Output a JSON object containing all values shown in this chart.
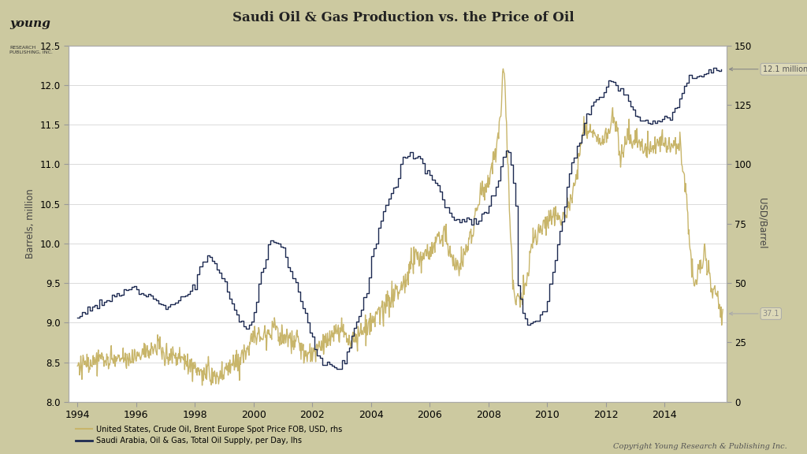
{
  "title": "Saudi Oil & Gas Production vs. the Price of Oil",
  "bg_outer": "#ccc9a0",
  "bg_plot": "#ffffff",
  "ylabel_left": "Barrels, million",
  "ylabel_right": "USD/Barrel",
  "ylim_left": [
    8.0,
    12.5
  ],
  "ylim_right": [
    0,
    150
  ],
  "xlim": [
    1993.7,
    2016.1
  ],
  "yticks_left": [
    8.0,
    8.5,
    9.0,
    9.5,
    10.0,
    10.5,
    11.0,
    11.5,
    12.0,
    12.5
  ],
  "yticks_right": [
    0,
    25,
    50,
    75,
    100,
    125,
    150
  ],
  "xtick_positions": [
    1994,
    1996,
    1998,
    2000,
    2002,
    2004,
    2006,
    2008,
    2010,
    2012,
    2014
  ],
  "xtick_labels": [
    "1994",
    "1996",
    "1998",
    "2000",
    "2002",
    "2004",
    "2006",
    "2008",
    "2010",
    "2012",
    "2014"
  ],
  "legend_gold": "United States, Crude Oil, Brent Europe Spot Price FOB, USD, rhs",
  "legend_navy": "Saudi Arabia, Oil & Gas, Total Oil Supply, per Day, lhs",
  "color_gold": "#c8b56a",
  "color_navy": "#1c2951",
  "label_121": "12.1 million",
  "label_371": "37.1",
  "copyright": "Copyright Young Research & Publishing Inc.",
  "saudi_key_points": [
    [
      1994.0,
      9.05
    ],
    [
      1994.083,
      9.1
    ],
    [
      1994.25,
      9.15
    ],
    [
      1994.333,
      9.18
    ],
    [
      1994.5,
      9.2
    ],
    [
      1994.583,
      9.22
    ],
    [
      1994.667,
      9.2
    ],
    [
      1994.75,
      9.22
    ],
    [
      1994.917,
      9.25
    ],
    [
      1995.0,
      9.25
    ],
    [
      1995.083,
      9.3
    ],
    [
      1995.25,
      9.33
    ],
    [
      1995.333,
      9.35
    ],
    [
      1995.5,
      9.38
    ],
    [
      1995.667,
      9.4
    ],
    [
      1995.75,
      9.42
    ],
    [
      1995.917,
      9.45
    ],
    [
      1996.0,
      9.45
    ],
    [
      1996.083,
      9.42
    ],
    [
      1996.25,
      9.4
    ],
    [
      1996.417,
      9.38
    ],
    [
      1996.5,
      9.35
    ],
    [
      1996.583,
      9.3
    ],
    [
      1996.667,
      9.28
    ],
    [
      1996.75,
      9.25
    ],
    [
      1996.917,
      9.22
    ],
    [
      1997.0,
      9.2
    ],
    [
      1997.083,
      9.22
    ],
    [
      1997.25,
      9.25
    ],
    [
      1997.5,
      9.3
    ],
    [
      1997.667,
      9.35
    ],
    [
      1997.75,
      9.38
    ],
    [
      1997.917,
      9.42
    ],
    [
      1998.0,
      9.5
    ],
    [
      1998.083,
      9.6
    ],
    [
      1998.167,
      9.7
    ],
    [
      1998.25,
      9.75
    ],
    [
      1998.333,
      9.8
    ],
    [
      1998.5,
      9.8
    ],
    [
      1998.583,
      9.78
    ],
    [
      1998.667,
      9.75
    ],
    [
      1999.0,
      9.5
    ],
    [
      1999.083,
      9.38
    ],
    [
      1999.167,
      9.3
    ],
    [
      1999.25,
      9.22
    ],
    [
      1999.333,
      9.15
    ],
    [
      1999.417,
      9.1
    ],
    [
      1999.5,
      9.05
    ],
    [
      1999.583,
      9.0
    ],
    [
      1999.667,
      8.98
    ],
    [
      1999.75,
      8.95
    ],
    [
      1999.917,
      9.0
    ],
    [
      2000.0,
      9.1
    ],
    [
      2000.083,
      9.3
    ],
    [
      2000.25,
      9.6
    ],
    [
      2000.417,
      9.8
    ],
    [
      2000.5,
      10.0
    ],
    [
      2000.583,
      10.05
    ],
    [
      2000.667,
      10.05
    ],
    [
      2000.75,
      10.05
    ],
    [
      2000.833,
      10.0
    ],
    [
      2000.917,
      9.95
    ],
    [
      2001.0,
      9.9
    ],
    [
      2001.083,
      9.85
    ],
    [
      2001.167,
      9.75
    ],
    [
      2001.25,
      9.65
    ],
    [
      2001.417,
      9.5
    ],
    [
      2001.5,
      9.4
    ],
    [
      2001.583,
      9.3
    ],
    [
      2001.667,
      9.2
    ],
    [
      2001.75,
      9.1
    ],
    [
      2001.833,
      9.0
    ],
    [
      2001.917,
      8.9
    ],
    [
      2002.0,
      8.8
    ],
    [
      2002.083,
      8.7
    ],
    [
      2002.167,
      8.6
    ],
    [
      2002.25,
      8.55
    ],
    [
      2002.333,
      8.5
    ],
    [
      2002.5,
      8.5
    ],
    [
      2002.583,
      8.48
    ],
    [
      2002.667,
      8.46
    ],
    [
      2002.75,
      8.45
    ],
    [
      2002.833,
      8.44
    ],
    [
      2002.917,
      8.44
    ],
    [
      2003.0,
      8.45
    ],
    [
      2003.083,
      8.5
    ],
    [
      2003.167,
      8.6
    ],
    [
      2003.25,
      8.7
    ],
    [
      2003.333,
      8.8
    ],
    [
      2003.417,
      8.9
    ],
    [
      2003.5,
      9.0
    ],
    [
      2003.583,
      9.1
    ],
    [
      2003.667,
      9.2
    ],
    [
      2003.75,
      9.3
    ],
    [
      2003.833,
      9.4
    ],
    [
      2003.917,
      9.6
    ],
    [
      2004.0,
      9.8
    ],
    [
      2004.083,
      9.9
    ],
    [
      2004.167,
      10.0
    ],
    [
      2004.25,
      10.2
    ],
    [
      2004.333,
      10.3
    ],
    [
      2004.5,
      10.5
    ],
    [
      2004.583,
      10.6
    ],
    [
      2004.667,
      10.65
    ],
    [
      2004.75,
      10.7
    ],
    [
      2004.833,
      10.75
    ],
    [
      2004.917,
      10.85
    ],
    [
      2005.0,
      11.0
    ],
    [
      2005.083,
      11.05
    ],
    [
      2005.167,
      11.08
    ],
    [
      2005.25,
      11.1
    ],
    [
      2005.333,
      11.1
    ],
    [
      2005.5,
      11.1
    ],
    [
      2005.583,
      11.08
    ],
    [
      2005.667,
      11.05
    ],
    [
      2005.75,
      11.0
    ],
    [
      2005.833,
      10.95
    ],
    [
      2005.917,
      10.9
    ],
    [
      2006.0,
      10.85
    ],
    [
      2006.083,
      10.8
    ],
    [
      2006.167,
      10.75
    ],
    [
      2006.25,
      10.7
    ],
    [
      2006.333,
      10.65
    ],
    [
      2006.5,
      10.5
    ],
    [
      2006.583,
      10.45
    ],
    [
      2006.667,
      10.4
    ],
    [
      2006.75,
      10.35
    ],
    [
      2006.917,
      10.3
    ],
    [
      2007.0,
      10.25
    ],
    [
      2007.083,
      10.3
    ],
    [
      2007.25,
      10.3
    ],
    [
      2007.5,
      10.3
    ],
    [
      2007.583,
      10.3
    ],
    [
      2007.667,
      10.32
    ],
    [
      2007.75,
      10.35
    ],
    [
      2007.917,
      10.4
    ],
    [
      2008.0,
      10.5
    ],
    [
      2008.083,
      10.6
    ],
    [
      2008.25,
      10.7
    ],
    [
      2008.333,
      10.8
    ],
    [
      2008.5,
      11.1
    ],
    [
      2008.583,
      11.2
    ],
    [
      2008.667,
      11.15
    ],
    [
      2008.75,
      11.0
    ],
    [
      2008.833,
      10.8
    ],
    [
      2008.917,
      10.5
    ],
    [
      2009.0,
      9.5
    ],
    [
      2009.083,
      9.3
    ],
    [
      2009.167,
      9.1
    ],
    [
      2009.25,
      9.05
    ],
    [
      2009.333,
      9.0
    ],
    [
      2009.5,
      9.0
    ],
    [
      2009.583,
      9.0
    ],
    [
      2009.667,
      9.05
    ],
    [
      2009.75,
      9.1
    ],
    [
      2009.833,
      9.15
    ],
    [
      2009.917,
      9.2
    ],
    [
      2010.0,
      9.3
    ],
    [
      2010.083,
      9.5
    ],
    [
      2010.25,
      9.8
    ],
    [
      2010.333,
      10.0
    ],
    [
      2010.5,
      10.3
    ],
    [
      2010.583,
      10.5
    ],
    [
      2010.667,
      10.7
    ],
    [
      2010.75,
      10.9
    ],
    [
      2010.833,
      11.0
    ],
    [
      2010.917,
      11.1
    ],
    [
      2011.0,
      11.2
    ],
    [
      2011.083,
      11.3
    ],
    [
      2011.25,
      11.5
    ],
    [
      2011.333,
      11.6
    ],
    [
      2011.5,
      11.7
    ],
    [
      2011.583,
      11.75
    ],
    [
      2011.667,
      11.8
    ],
    [
      2011.75,
      11.85
    ],
    [
      2011.833,
      11.9
    ],
    [
      2011.917,
      11.95
    ],
    [
      2012.0,
      12.0
    ],
    [
      2012.083,
      12.05
    ],
    [
      2012.167,
      12.05
    ],
    [
      2012.25,
      12.05
    ],
    [
      2012.333,
      12.0
    ],
    [
      2012.5,
      11.95
    ],
    [
      2012.583,
      11.9
    ],
    [
      2012.667,
      11.85
    ],
    [
      2012.75,
      11.8
    ],
    [
      2012.833,
      11.75
    ],
    [
      2012.917,
      11.7
    ],
    [
      2013.0,
      11.65
    ],
    [
      2013.083,
      11.6
    ],
    [
      2013.25,
      11.55
    ],
    [
      2013.5,
      11.5
    ],
    [
      2013.583,
      11.48
    ],
    [
      2013.667,
      11.5
    ],
    [
      2013.75,
      11.52
    ],
    [
      2013.833,
      11.55
    ],
    [
      2013.917,
      11.6
    ],
    [
      2014.0,
      11.6
    ],
    [
      2014.083,
      11.62
    ],
    [
      2014.25,
      11.65
    ],
    [
      2014.333,
      11.7
    ],
    [
      2014.5,
      11.8
    ],
    [
      2014.583,
      11.9
    ],
    [
      2014.667,
      12.0
    ],
    [
      2014.75,
      12.05
    ],
    [
      2014.833,
      12.1
    ],
    [
      2014.917,
      12.1
    ],
    [
      2015.0,
      12.1
    ],
    [
      2015.083,
      12.12
    ],
    [
      2015.25,
      12.15
    ],
    [
      2015.5,
      12.18
    ],
    [
      2015.667,
      12.2
    ],
    [
      2015.75,
      12.2
    ],
    [
      2015.833,
      12.2
    ],
    [
      2015.917,
      12.2
    ]
  ],
  "oil_price_key_points": [
    [
      1994.0,
      15.0
    ],
    [
      1994.25,
      15.5
    ],
    [
      1994.5,
      17.0
    ],
    [
      1994.75,
      17.5
    ],
    [
      1995.0,
      17.0
    ],
    [
      1995.25,
      17.5
    ],
    [
      1995.5,
      17.2
    ],
    [
      1995.75,
      17.0
    ],
    [
      1996.0,
      20.0
    ],
    [
      1996.25,
      22.0
    ],
    [
      1996.5,
      21.0
    ],
    [
      1996.75,
      23.0
    ],
    [
      1997.0,
      20.0
    ],
    [
      1997.25,
      19.0
    ],
    [
      1997.5,
      18.5
    ],
    [
      1997.75,
      17.0
    ],
    [
      1998.0,
      14.0
    ],
    [
      1998.25,
      12.0
    ],
    [
      1998.5,
      11.0
    ],
    [
      1998.75,
      10.0
    ],
    [
      1999.0,
      12.0
    ],
    [
      1999.25,
      15.0
    ],
    [
      1999.5,
      18.0
    ],
    [
      1999.75,
      22.0
    ],
    [
      2000.0,
      27.0
    ],
    [
      2000.25,
      28.0
    ],
    [
      2000.5,
      30.0
    ],
    [
      2000.75,
      32.0
    ],
    [
      2001.0,
      26.0
    ],
    [
      2001.25,
      26.0
    ],
    [
      2001.5,
      25.0
    ],
    [
      2001.75,
      20.0
    ],
    [
      2002.0,
      19.0
    ],
    [
      2002.25,
      24.0
    ],
    [
      2002.5,
      26.0
    ],
    [
      2002.75,
      27.0
    ],
    [
      2003.0,
      30.0
    ],
    [
      2003.25,
      27.0
    ],
    [
      2003.5,
      27.0
    ],
    [
      2003.75,
      30.0
    ],
    [
      2004.0,
      32.0
    ],
    [
      2004.25,
      36.0
    ],
    [
      2004.5,
      40.0
    ],
    [
      2004.75,
      44.0
    ],
    [
      2005.0,
      47.0
    ],
    [
      2005.25,
      53.0
    ],
    [
      2005.5,
      62.0
    ],
    [
      2005.75,
      60.0
    ],
    [
      2006.0,
      62.0
    ],
    [
      2006.25,
      68.0
    ],
    [
      2006.5,
      72.0
    ],
    [
      2006.75,
      60.0
    ],
    [
      2007.0,
      56.0
    ],
    [
      2007.25,
      65.0
    ],
    [
      2007.5,
      74.0
    ],
    [
      2007.75,
      90.0
    ],
    [
      2008.0,
      92.0
    ],
    [
      2008.25,
      105.0
    ],
    [
      2008.417,
      120.0
    ],
    [
      2008.5,
      143.0
    ],
    [
      2008.583,
      130.0
    ],
    [
      2008.667,
      100.0
    ],
    [
      2008.75,
      70.0
    ],
    [
      2008.833,
      52.0
    ],
    [
      2008.917,
      42.0
    ],
    [
      2009.0,
      42.0
    ],
    [
      2009.083,
      43.0
    ],
    [
      2009.25,
      47.0
    ],
    [
      2009.5,
      67.0
    ],
    [
      2009.75,
      72.0
    ],
    [
      2009.917,
      74.0
    ],
    [
      2010.0,
      76.0
    ],
    [
      2010.25,
      78.0
    ],
    [
      2010.5,
      78.0
    ],
    [
      2010.75,
      82.0
    ],
    [
      2010.917,
      90.0
    ],
    [
      2011.0,
      96.0
    ],
    [
      2011.167,
      110.0
    ],
    [
      2011.25,
      118.0
    ],
    [
      2011.5,
      114.0
    ],
    [
      2011.667,
      112.0
    ],
    [
      2011.75,
      110.0
    ],
    [
      2011.917,
      108.0
    ],
    [
      2012.0,
      112.0
    ],
    [
      2012.25,
      120.0
    ],
    [
      2012.417,
      115.0
    ],
    [
      2012.5,
      102.0
    ],
    [
      2012.667,
      110.0
    ],
    [
      2012.75,
      112.0
    ],
    [
      2012.917,
      110.0
    ],
    [
      2013.0,
      112.0
    ],
    [
      2013.25,
      108.0
    ],
    [
      2013.5,
      106.0
    ],
    [
      2013.75,
      108.0
    ],
    [
      2013.917,
      110.0
    ],
    [
      2014.0,
      108.0
    ],
    [
      2014.25,
      108.0
    ],
    [
      2014.5,
      108.0
    ],
    [
      2014.583,
      102.0
    ],
    [
      2014.667,
      95.0
    ],
    [
      2014.75,
      85.0
    ],
    [
      2014.833,
      70.0
    ],
    [
      2014.917,
      60.0
    ],
    [
      2015.0,
      50.0
    ],
    [
      2015.083,
      52.0
    ],
    [
      2015.167,
      57.0
    ],
    [
      2015.25,
      55.0
    ],
    [
      2015.333,
      63.0
    ],
    [
      2015.417,
      60.0
    ],
    [
      2015.5,
      55.0
    ],
    [
      2015.583,
      48.0
    ],
    [
      2015.667,
      47.0
    ],
    [
      2015.75,
      48.0
    ],
    [
      2015.833,
      42.0
    ],
    [
      2015.917,
      37.0
    ],
    [
      2015.96,
      37.0
    ]
  ]
}
